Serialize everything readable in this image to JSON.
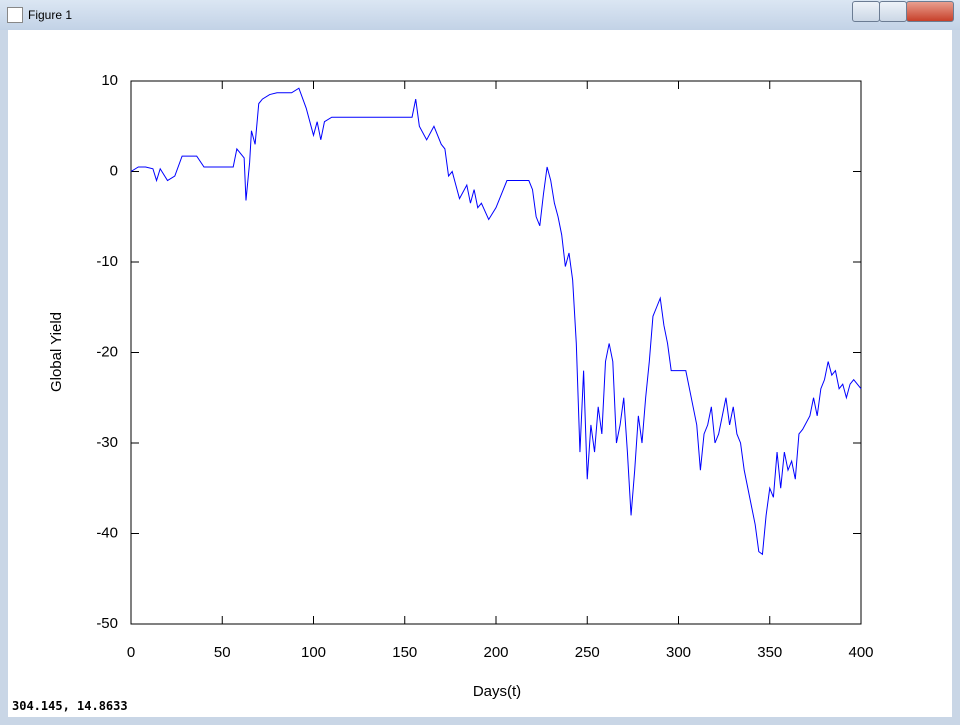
{
  "window": {
    "title": "Figure 1"
  },
  "status": "304.145,  14.8633",
  "chart_data": {
    "type": "line",
    "xlabel": "Days(t)",
    "ylabel": "Global Yield",
    "x": [
      0,
      4,
      8,
      12,
      14,
      16,
      20,
      24,
      28,
      32,
      36,
      40,
      44,
      48,
      52,
      56,
      58,
      62,
      63,
      65,
      66,
      68,
      70,
      72,
      76,
      80,
      84,
      88,
      92,
      96,
      100,
      102,
      104,
      106,
      110,
      120,
      130,
      140,
      150,
      154,
      156,
      158,
      162,
      166,
      170,
      172,
      174,
      176,
      178,
      180,
      184,
      186,
      188,
      190,
      192,
      196,
      200,
      204,
      206,
      212,
      218,
      220,
      222,
      224,
      226,
      228,
      230,
      232,
      234,
      236,
      238,
      240,
      242,
      244,
      246,
      248,
      250,
      252,
      254,
      256,
      258,
      260,
      262,
      264,
      266,
      268,
      270,
      272,
      274,
      276,
      278,
      280,
      282,
      284,
      286,
      288,
      290,
      292,
      294,
      296,
      300,
      304,
      308,
      310,
      312,
      314,
      316,
      318,
      320,
      322,
      324,
      326,
      328,
      330,
      332,
      334,
      336,
      338,
      340,
      342,
      344,
      346,
      348,
      350,
      352,
      354,
      356,
      358,
      360,
      362,
      364,
      366,
      368,
      372,
      374,
      376,
      378,
      380,
      382,
      384,
      386,
      388,
      390,
      392,
      394,
      396,
      400
    ],
    "series": [
      {
        "name": "Global Yield",
        "color": "#0000ff",
        "values": [
          0,
          0.5,
          0.5,
          0.3,
          -1,
          0.3,
          -1,
          -0.5,
          1.7,
          1.7,
          1.7,
          0.5,
          0.5,
          0.5,
          0.5,
          0.5,
          2.5,
          1.5,
          -3.2,
          1,
          4.5,
          3,
          7.5,
          8,
          8.5,
          8.7,
          8.7,
          8.7,
          9.2,
          7,
          4,
          5.5,
          3.5,
          5.5,
          6,
          6,
          6,
          6,
          6,
          6,
          8,
          5,
          3.5,
          5,
          3,
          2.5,
          -0.5,
          0,
          -1.5,
          -3,
          -1.5,
          -3.5,
          -2,
          -4,
          -3.5,
          -5.3,
          -4,
          -2,
          -1,
          -1,
          -1,
          -2,
          -5,
          -6,
          -2.5,
          0.5,
          -1,
          -3.5,
          -5,
          -7,
          -10.5,
          -9,
          -12,
          -19,
          -31,
          -22,
          -34,
          -28,
          -31,
          -26,
          -29,
          -21,
          -19,
          -21,
          -30,
          -28,
          -25,
          -31,
          -38,
          -33,
          -27,
          -30,
          -25,
          -21,
          -16,
          -15,
          -14,
          -17,
          -19,
          -22,
          -22,
          -22,
          -26,
          -28,
          -33,
          -29,
          -28,
          -26,
          -30,
          -29,
          -27,
          -25,
          -28,
          -26,
          -29,
          -30,
          -33,
          -35,
          -37,
          -39,
          -42,
          -42.3,
          -38,
          -35,
          -36,
          -31,
          -35,
          -31,
          -33,
          -32,
          -34,
          -29,
          -28.5,
          -27,
          -25,
          -27,
          -24,
          -23,
          -21,
          -22.5,
          -22,
          -24,
          -23.5,
          -25,
          -23.5,
          -23,
          -24
        ]
      }
    ],
    "xlim": [
      0,
      400
    ],
    "xticks": [
      0,
      50,
      100,
      150,
      200,
      250,
      300,
      350,
      400
    ],
    "ylim": [
      -50,
      10
    ],
    "yticks": [
      -50,
      -40,
      -30,
      -20,
      -10,
      0,
      10
    ]
  }
}
